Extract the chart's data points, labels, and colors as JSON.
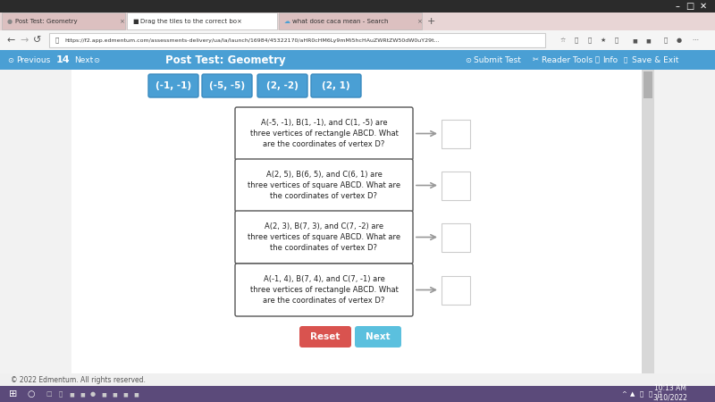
{
  "bg_outer": "#c8c8c8",
  "title_bar_color": "#2b2b2b",
  "tab_bar_color": "#e8d5d5",
  "tab1_color": "#dcc0c0",
  "tab2_color": "#ffffff",
  "tab3_color": "#dcc0c0",
  "addr_bar_color": "#f5f5f5",
  "nav_bar_color": "#4a9fd4",
  "content_bg": "#f2f2f2",
  "panel_bg": "#ffffff",
  "title": "Post Test: Geometry",
  "tiles": [
    "(-1, -1)",
    "(-5, -5)",
    "(2, -2)",
    "(2, 1)"
  ],
  "tile_color": "#4a9fd4",
  "tile_text_color": "#ffffff",
  "questions": [
    "A(-5, -1), B(1, -1), and C(1, -5) are\nthree vertices of rectangle ABCD. What\nare the coordinates of vertex D?",
    "A(2, 5), B(6, 5), and C(6, 1) are\nthree vertices of square ABCD. What are\nthe coordinates of vertex D?",
    "A(2, 3), B(7, 3), and C(7, -2) are\nthree vertices of square ABCD. What are\nthe coordinates of vertex D?",
    "A(-1, 4), B(7, 4), and C(7, -1) are\nthree vertices of rectangle ABCD. What\nare the coordinates of vertex D?"
  ],
  "reset_btn_color": "#d9534f",
  "next_btn_color": "#5bc0de",
  "footer_text": "© 2022 Edmentum. All rights reserved.",
  "url": "https://f2.app.edmentum.com/assessments-delivery/ua/la/launch/16984/45322170/aHR0cHM6Ly9mMi5hcHAuZWRtZW50dW0uY29t...",
  "time_text": "10:13 AM\n3/10/2022",
  "taskbar_color": "#5b4a7a"
}
